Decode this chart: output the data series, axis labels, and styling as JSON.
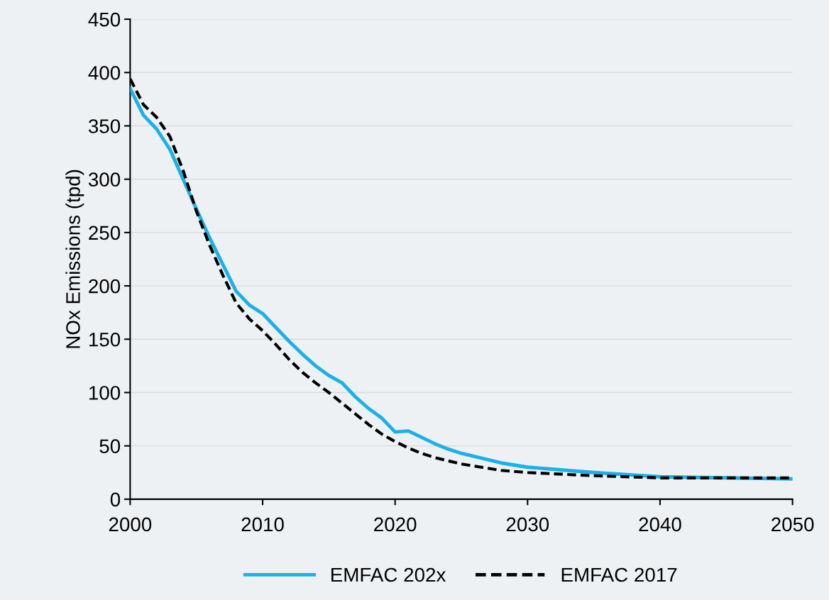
{
  "chart_data": {
    "type": "line",
    "ylabel": "NOx Emissions (tpd)",
    "xlim": [
      2000,
      2050
    ],
    "xticks": [
      2000,
      2010,
      2020,
      2030,
      2040,
      2050
    ],
    "ylim": [
      0,
      450
    ],
    "yticks": [
      0,
      50,
      100,
      150,
      200,
      250,
      300,
      350,
      400,
      450
    ],
    "grid": "y",
    "legend": "bottom",
    "marker": "none",
    "series": [
      {
        "name": "EMFAC 202x",
        "color": "#1ab0e8",
        "line_style": "solid",
        "x": [
          2000,
          2001,
          2002,
          2003,
          2004,
          2005,
          2006,
          2007,
          2008,
          2009,
          2010,
          2011,
          2012,
          2013,
          2014,
          2015,
          2016,
          2017,
          2018,
          2019,
          2020,
          2021,
          2022,
          2023,
          2024,
          2025,
          2026,
          2027,
          2028,
          2029,
          2030,
          2032,
          2035,
          2040,
          2045,
          2050
        ],
        "values": [
          385,
          360,
          347,
          328,
          300,
          272,
          245,
          220,
          195,
          182,
          174,
          161,
          148,
          136,
          125,
          116,
          109,
          96,
          85,
          76,
          63,
          64,
          58,
          52,
          47,
          43,
          40,
          37,
          34,
          32,
          30,
          28,
          25,
          21,
          20,
          19
        ]
      },
      {
        "name": "EMFAC 2017",
        "color": "#000000",
        "line_style": "dashed",
        "x": [
          2000,
          2001,
          2002,
          2003,
          2004,
          2005,
          2006,
          2007,
          2008,
          2009,
          2010,
          2011,
          2012,
          2013,
          2014,
          2015,
          2016,
          2017,
          2018,
          2019,
          2020,
          2021,
          2022,
          2023,
          2024,
          2025,
          2026,
          2027,
          2028,
          2030,
          2035,
          2040,
          2045,
          2050
        ],
        "values": [
          394,
          370,
          358,
          340,
          308,
          270,
          238,
          210,
          184,
          169,
          158,
          145,
          131,
          119,
          109,
          100,
          90,
          80,
          70,
          61,
          54,
          48,
          43,
          39,
          36,
          33,
          31,
          29,
          27,
          25,
          22,
          20,
          20,
          20
        ]
      }
    ]
  }
}
